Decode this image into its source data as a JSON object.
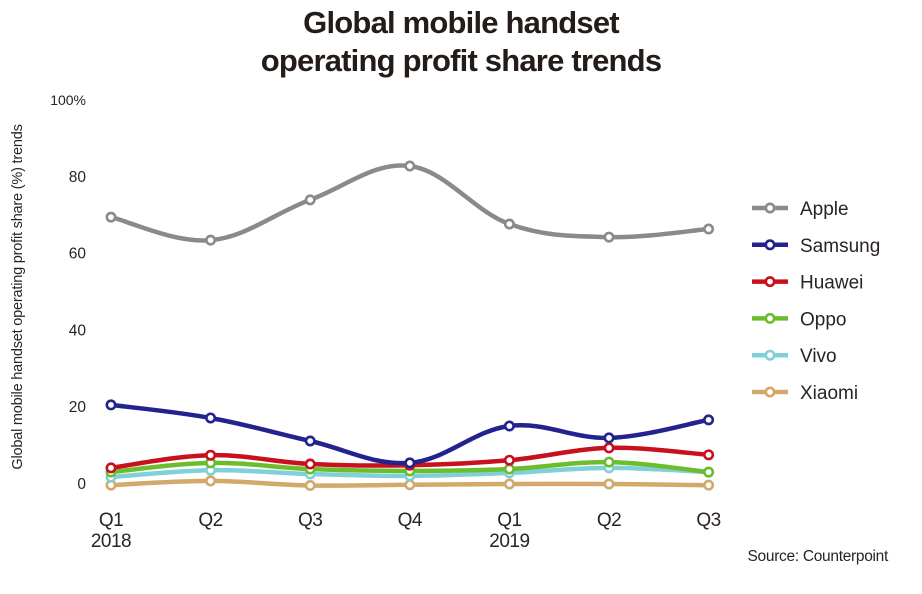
{
  "chart_data": {
    "type": "line",
    "title": "Global mobile handset operating profit share trends",
    "title_lines": [
      "Global mobile handset",
      "operating profit share trends"
    ],
    "xlabel": "",
    "ylabel": "Global mobile handset operating profit share (%) trends",
    "categories": [
      "Q1 2018",
      "Q2 2018",
      "Q3 2018",
      "Q4 2018",
      "Q1 2019",
      "Q2 2019",
      "Q3 2019"
    ],
    "x_tick_labels": [
      {
        "line1": "Q1",
        "line2": "2018"
      },
      {
        "line1": "Q2",
        "line2": ""
      },
      {
        "line1": "Q3",
        "line2": ""
      },
      {
        "line1": "Q4",
        "line2": ""
      },
      {
        "line1": "Q1",
        "line2": "2019"
      },
      {
        "line1": "Q2",
        "line2": ""
      },
      {
        "line1": "Q3",
        "line2": ""
      }
    ],
    "y_ticks": [
      {
        "value": 0,
        "label": "0"
      },
      {
        "value": 20,
        "label": "20"
      },
      {
        "value": 40,
        "label": "40"
      },
      {
        "value": 60,
        "label": "60"
      },
      {
        "value": 80,
        "label": "80"
      },
      {
        "value": 100,
        "label": "100%"
      }
    ],
    "ylim": [
      0,
      100
    ],
    "grid": false,
    "legend_position": "right",
    "series": [
      {
        "name": "Apple",
        "color": "#8a8a8a",
        "values": [
          69.5,
          63.5,
          74,
          82.8,
          67.7,
          64.3,
          66.4
        ]
      },
      {
        "name": "Samsung",
        "color": "#23238f",
        "values": [
          20.6,
          17.2,
          11.2,
          5.5,
          15.1,
          12.0,
          16.7
        ]
      },
      {
        "name": "Huawei",
        "color": "#c8101e",
        "values": [
          4.2,
          7.5,
          5.2,
          4.9,
          6.2,
          9.4,
          7.6
        ]
      },
      {
        "name": "Oppo",
        "color": "#6cbd2e",
        "values": [
          3.1,
          5.5,
          3.9,
          3.4,
          3.9,
          5.7,
          3.1
        ]
      },
      {
        "name": "Vivo",
        "color": "#80d0d8",
        "values": [
          1.8,
          3.6,
          2.6,
          2.1,
          2.9,
          4.2,
          3.1
        ]
      },
      {
        "name": "Xiaomi",
        "color": "#d2a86b",
        "values": [
          -0.3,
          0.8,
          -0.4,
          -0.2,
          0.0,
          0.0,
          -0.3
        ]
      }
    ],
    "source": "Source: Counterpoint"
  }
}
